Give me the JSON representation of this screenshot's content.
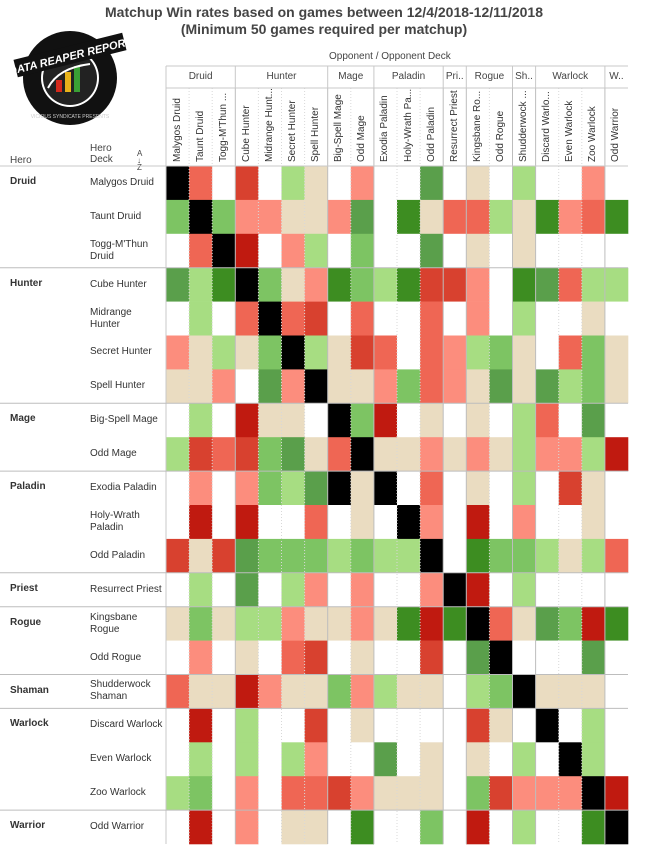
{
  "title_line1": "Matchup Win rates based on games between 12/4/2018-12/11/2018",
  "title_line2": "(Minimum 50 games required per matchup)",
  "logo": {
    "text": "DATA REAPER REPORT",
    "subtitle": "VICIOUS SYNDICATE PRESENTS",
    "icon": "bar-chart-icon"
  },
  "labels": {
    "opponent_header": "Opponent  /  Opponent Deck",
    "row_hero": "Hero",
    "row_deck": "Hero\nDeck",
    "sort_icon": "A↓Z"
  },
  "colors": {
    "1": "#000000",
    "2": "#c01a10",
    "3": "#d8412f",
    "4": "#ef6654",
    "5": "#fc8d7d",
    "6": "#eadcc1",
    "7": "#ffffff",
    "8": "#a7dd82",
    "9": "#7dc463",
    "10": "#5a9f4b",
    "11": "#3d8d21"
  },
  "chart_data": {
    "type": "heatmap",
    "title": "Matchup Win rates based on games between 12/4/2018-12/11/2018",
    "subtitle": "(Minimum 50 games required per matchup)",
    "value_encoding": "ordinal win-rate bucket 1-11 (1 = mirror, 2 = strongly unfavored, 7 = even, 11 = strongly favored)",
    "column_groups": [
      {
        "name": "Druid",
        "columns": [
          "Malygos Druid",
          "Taunt Druid",
          "Togg-M'Thun ..."
        ]
      },
      {
        "name": "Hunter",
        "columns": [
          "Cube Hunter",
          "Midrange Hunt...",
          "Secret Hunter",
          "Spell Hunter"
        ]
      },
      {
        "name": "Mage",
        "columns": [
          "Big-Spell Mage",
          "Odd Mage"
        ]
      },
      {
        "name": "Paladin",
        "columns": [
          "Exodia Paladin",
          "Holy-Wrath Pa...",
          "Odd Paladin"
        ]
      },
      {
        "name": "Pri..",
        "columns": [
          "Resurrect Priest"
        ]
      },
      {
        "name": "Rogue",
        "columns": [
          "Kingsbane Ro...",
          "Odd Rogue"
        ]
      },
      {
        "name": "Sh..",
        "columns": [
          "Shudderwock ..."
        ]
      },
      {
        "name": "Warlock",
        "columns": [
          "Discard Warlo...",
          "Even Warlock",
          "Zoo Warlock"
        ]
      },
      {
        "name": "W..",
        "columns": [
          "Odd Warrior"
        ]
      }
    ],
    "row_groups": [
      {
        "hero": "Druid",
        "decks": [
          "Malygos Druid",
          "Taunt Druid",
          "Togg-M'Thun Druid"
        ]
      },
      {
        "hero": "Hunter",
        "decks": [
          "Cube Hunter",
          "Midrange Hunter",
          "Secret Hunter",
          "Spell Hunter"
        ]
      },
      {
        "hero": "Mage",
        "decks": [
          "Big-Spell Mage",
          "Odd Mage"
        ]
      },
      {
        "hero": "Paladin",
        "decks": [
          "Exodia Paladin",
          "Holy-Wrath Paladin",
          "Odd Paladin"
        ]
      },
      {
        "hero": "Priest",
        "decks": [
          "Resurrect Priest"
        ]
      },
      {
        "hero": "Rogue",
        "decks": [
          "Kingsbane Rogue",
          "Odd Rogue"
        ]
      },
      {
        "hero": "Shaman",
        "decks": [
          "Shudderwock Shaman"
        ]
      },
      {
        "hero": "Warlock",
        "decks": [
          "Discard Warlock",
          "Even Warlock",
          "Zoo Warlock"
        ]
      },
      {
        "hero": "Warrior",
        "decks": [
          "Odd Warrior"
        ]
      }
    ],
    "values": [
      [
        1,
        4,
        7,
        3,
        7,
        8,
        6,
        7,
        5,
        7,
        7,
        10,
        7,
        6,
        7,
        8,
        7,
        7,
        5,
        7
      ],
      [
        9,
        1,
        9,
        5,
        5,
        6,
        6,
        5,
        10,
        7,
        11,
        6,
        4,
        4,
        8,
        6,
        11,
        5,
        4,
        11
      ],
      [
        7,
        4,
        1,
        2,
        7,
        5,
        8,
        7,
        9,
        7,
        7,
        10,
        7,
        6,
        7,
        6,
        7,
        7,
        7,
        7
      ],
      [
        10,
        8,
        11,
        1,
        9,
        6,
        5,
        11,
        9,
        8,
        11,
        3,
        3,
        5,
        7,
        11,
        10,
        4,
        8,
        8
      ],
      [
        7,
        8,
        7,
        4,
        1,
        4,
        3,
        7,
        4,
        7,
        7,
        4,
        7,
        5,
        7,
        8,
        7,
        7,
        6,
        7
      ],
      [
        5,
        6,
        8,
        6,
        9,
        1,
        8,
        6,
        3,
        4,
        7,
        4,
        5,
        8,
        9,
        6,
        7,
        4,
        9,
        6
      ],
      [
        6,
        6,
        5,
        7,
        10,
        5,
        1,
        6,
        6,
        5,
        9,
        4,
        5,
        6,
        10,
        6,
        10,
        8,
        9,
        6
      ],
      [
        7,
        8,
        7,
        2,
        6,
        6,
        7,
        1,
        9,
        2,
        7,
        6,
        7,
        6,
        7,
        8,
        4,
        7,
        10,
        7
      ],
      [
        8,
        3,
        4,
        3,
        9,
        10,
        6,
        4,
        1,
        6,
        6,
        5,
        6,
        5,
        6,
        8,
        5,
        5,
        8,
        2
      ],
      [
        7,
        5,
        7,
        5,
        9,
        8,
        10,
        1,
        6,
        1,
        7,
        4,
        7,
        6,
        7,
        8,
        7,
        3,
        6,
        7
      ],
      [
        7,
        2,
        7,
        2,
        7,
        7,
        4,
        7,
        6,
        7,
        1,
        5,
        7,
        2,
        7,
        5,
        7,
        7,
        6,
        7
      ],
      [
        3,
        6,
        3,
        10,
        9,
        9,
        9,
        8,
        9,
        8,
        8,
        1,
        7,
        11,
        9,
        9,
        8,
        6,
        8,
        4
      ],
      [
        7,
        8,
        7,
        10,
        7,
        8,
        5,
        7,
        5,
        7,
        7,
        5,
        1,
        2,
        7,
        8,
        7,
        7,
        7,
        7
      ],
      [
        6,
        9,
        6,
        8,
        8,
        5,
        6,
        6,
        5,
        6,
        11,
        2,
        11,
        1,
        4,
        6,
        10,
        9,
        2,
        11
      ],
      [
        7,
        5,
        7,
        6,
        7,
        4,
        3,
        7,
        6,
        7,
        7,
        3,
        7,
        10,
        1,
        7,
        7,
        7,
        10,
        7
      ],
      [
        4,
        6,
        6,
        2,
        5,
        6,
        6,
        9,
        5,
        8,
        6,
        6,
        7,
        8,
        9,
        1,
        6,
        6,
        6,
        7
      ],
      [
        7,
        2,
        7,
        8,
        7,
        7,
        3,
        7,
        6,
        7,
        7,
        7,
        7,
        3,
        6,
        7,
        1,
        7,
        8,
        7
      ],
      [
        7,
        8,
        7,
        8,
        7,
        8,
        5,
        7,
        7,
        10,
        7,
        6,
        7,
        6,
        7,
        8,
        7,
        1,
        8,
        7
      ],
      [
        8,
        9,
        7,
        5,
        7,
        4,
        4,
        3,
        5,
        6,
        6,
        6,
        7,
        9,
        3,
        5,
        5,
        5,
        1,
        2
      ],
      [
        7,
        2,
        7,
        5,
        7,
        6,
        6,
        7,
        11,
        7,
        7,
        9,
        7,
        2,
        7,
        8,
        7,
        7,
        11,
        1
      ]
    ]
  }
}
